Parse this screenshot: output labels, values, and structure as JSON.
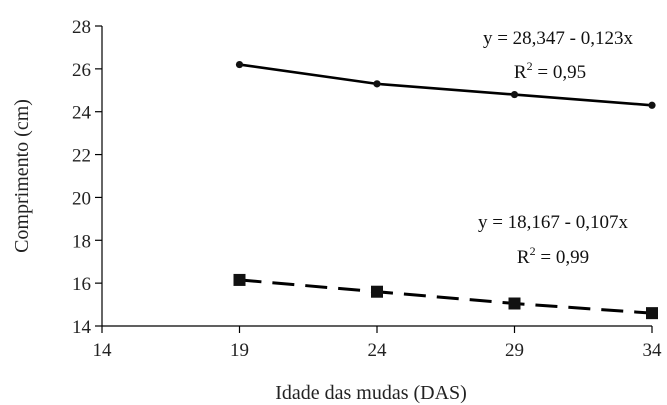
{
  "chart_data": {
    "type": "scatter",
    "xlabel": "Idade das mudas (DAS)",
    "ylabel": "Comprimento (cm)",
    "xlim": [
      14,
      34
    ],
    "ylim": [
      14,
      28
    ],
    "xticks": [
      "14",
      "19",
      "24",
      "29",
      "34"
    ],
    "yticks": [
      "14",
      "16",
      "18",
      "20",
      "22",
      "24",
      "26",
      "28"
    ],
    "grid": false,
    "series": [
      {
        "marker": "circle",
        "line_style": "solid",
        "x": [
          19,
          24,
          29,
          34
        ],
        "y": [
          26.2,
          25.3,
          24.8,
          24.3
        ],
        "fit": {
          "intercept": 28.347,
          "slope": -0.123
        },
        "equation": "y = 28,347 - 0,123x",
        "r2_label": "R",
        "r2_sup": "2",
        "r2_value": " = 0,95"
      },
      {
        "marker": "square",
        "line_style": "dashed",
        "x": [
          19,
          24,
          29,
          34
        ],
        "y": [
          16.15,
          15.6,
          15.05,
          14.6
        ],
        "fit": {
          "intercept": 18.167,
          "slope": -0.107
        },
        "equation": "y = 18,167 - 0,107x",
        "r2_label": "R",
        "r2_sup": "2",
        "r2_value": " = 0,99"
      }
    ]
  }
}
